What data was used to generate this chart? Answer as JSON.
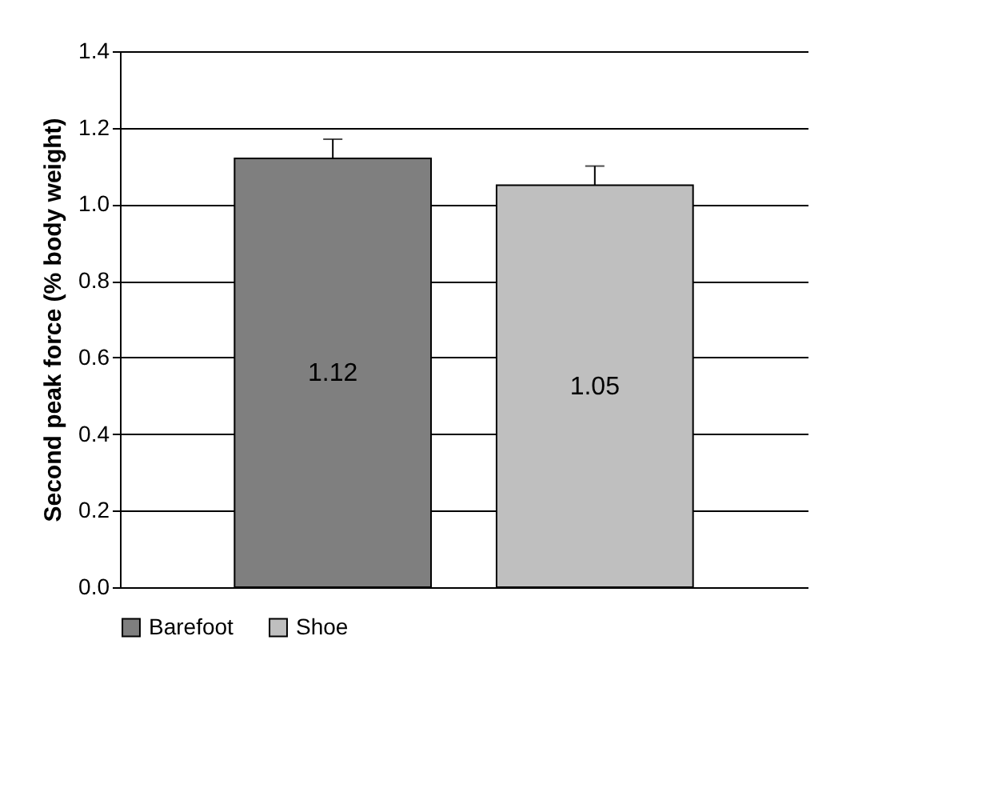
{
  "chart_data": {
    "type": "bar",
    "ylabel": "Second peak force (% body weight)",
    "categories": [
      null
    ],
    "series": [
      {
        "name": "Barefoot",
        "color": "#7f7f7f",
        "values": [
          1.12
        ],
        "errors": [
          [
            1.12,
            1.17
          ]
        ]
      },
      {
        "name": "Shoe",
        "color": "#bfbfbf",
        "values": [
          1.05
        ],
        "errors": [
          [
            1.05,
            1.1
          ]
        ]
      }
    ],
    "ylim": [
      0,
      1.4
    ],
    "yticks": [
      {
        "value": 0,
        "label": "0.0"
      },
      0.2,
      0.4,
      0.6,
      0.8,
      {
        "value": 1,
        "label": "1.0"
      },
      1.2,
      1.4
    ],
    "grid": "y",
    "legend": "bottom",
    "data_labels": true,
    "tick_labels": "y"
  }
}
